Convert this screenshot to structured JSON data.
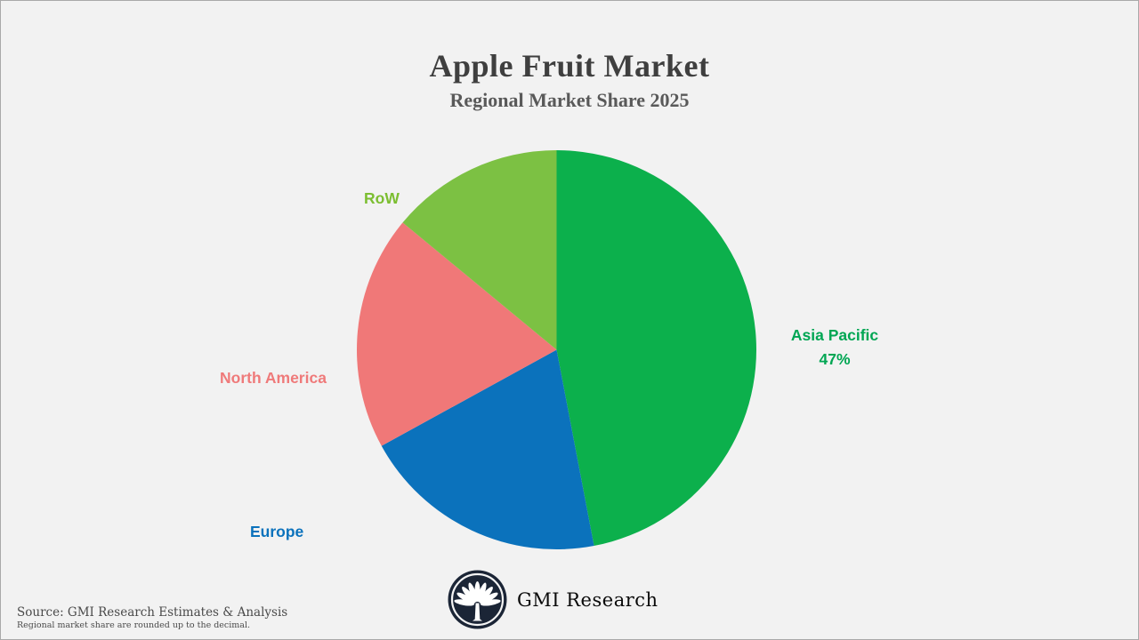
{
  "header": {
    "title": "Apple Fruit Market",
    "subtitle": "Regional Market Share 2025"
  },
  "chart_data": {
    "type": "pie",
    "title": "Apple Fruit Market",
    "subtitle": "Regional Market Share 2025",
    "start_angle_deg": 0,
    "direction": "clockwise",
    "legend_position": "none",
    "slices": [
      {
        "label": "Asia Pacific",
        "value": 47,
        "value_label": "47%",
        "color": "#0cb04c",
        "label_color": "#00a653"
      },
      {
        "label": "Europe",
        "value": 20,
        "color": "#0b72bc",
        "label_color": "#0b72bc"
      },
      {
        "label": "North America",
        "value": 19,
        "color": "#f07878",
        "label_color": "#ef7a7a"
      },
      {
        "label": "RoW",
        "value": 14,
        "color": "#7cc143",
        "label_color": "#7cbe31"
      }
    ]
  },
  "branding": {
    "name": "GMI Research",
    "logo_icon": "palmetto-tree-in-circle",
    "logo_color": "#1b2536"
  },
  "footer": {
    "source": "Source: GMI Research Estimates & Analysis",
    "note": "Regional market share are rounded up to the decimal."
  },
  "colors": {
    "background": "#f2f2f2",
    "canvas_border": "#a9a9a9",
    "title_text": "#3f3f3f",
    "subtitle_text": "#595959",
    "footer_text": "#4a4a4a"
  }
}
